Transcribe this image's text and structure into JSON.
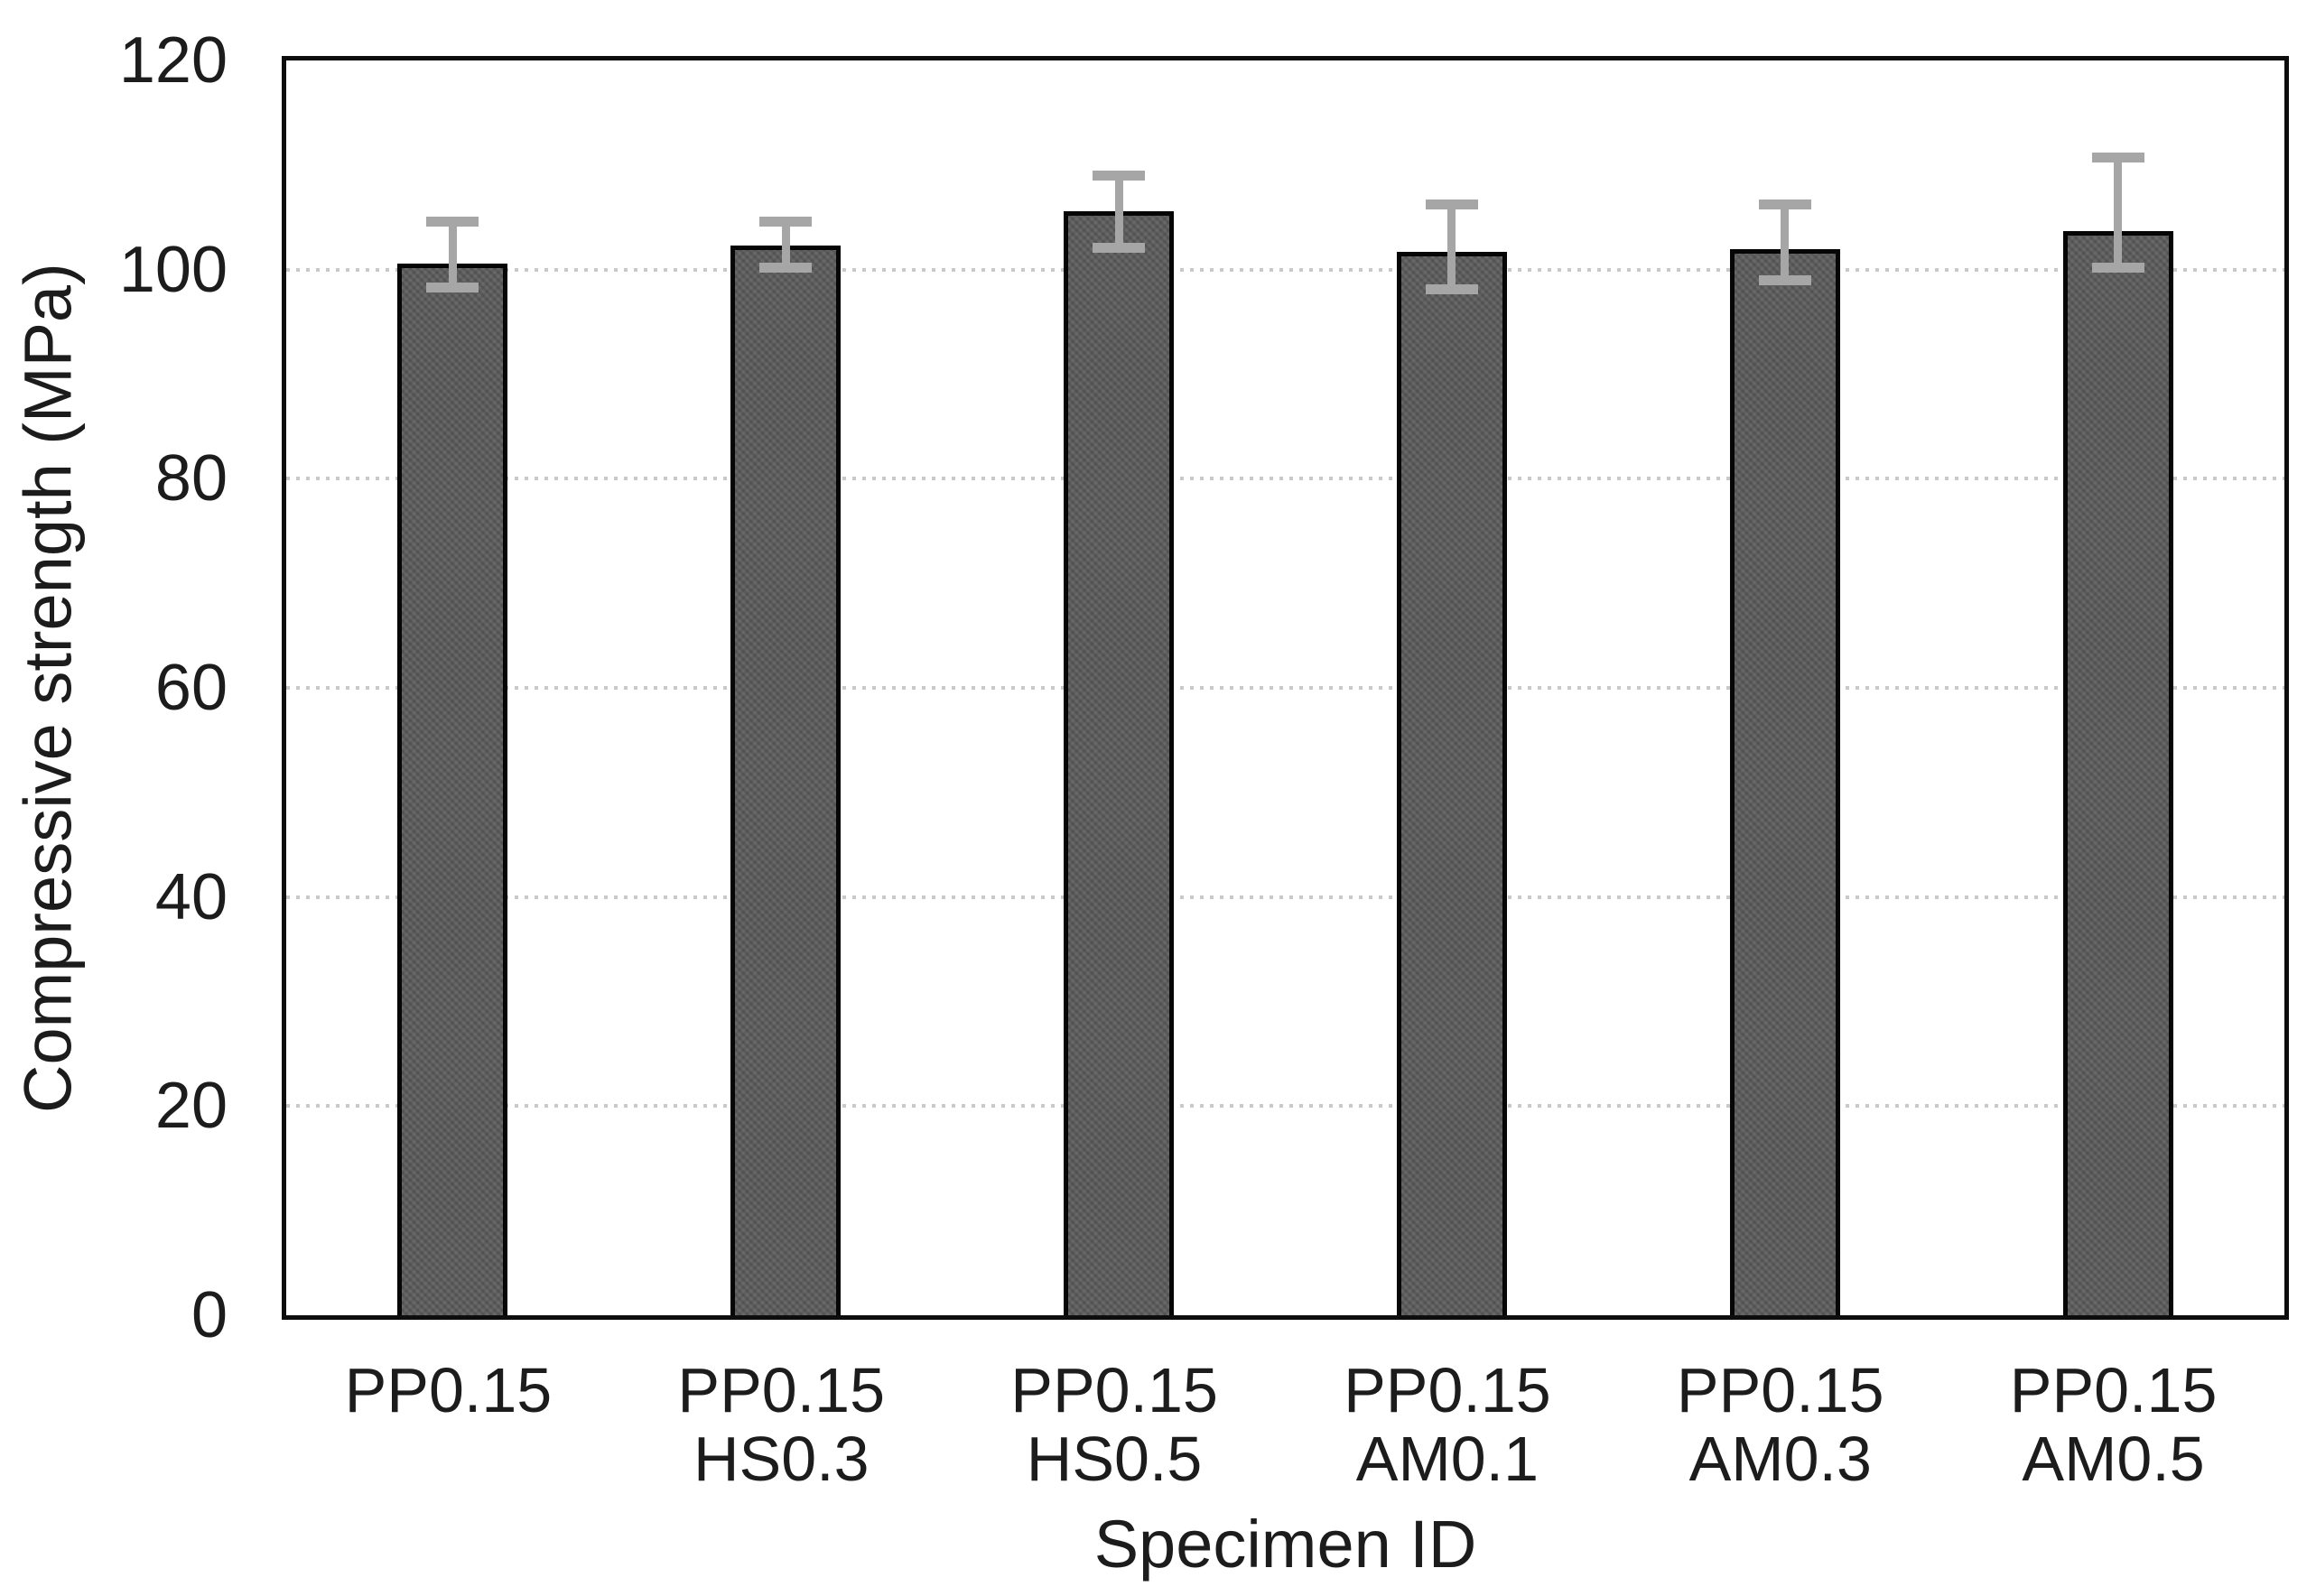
{
  "chart_data": {
    "type": "bar",
    "title": "",
    "xlabel": "Specimen ID",
    "ylabel": "Compressive strength (MPa)",
    "categories": [
      "PP0.15",
      "PP0.15\nHS0.3",
      "PP0.15\nHS0.5",
      "PP0.15\nAM0.1",
      "PP0.15\nAM0.3",
      "PP0.15\nAM0.5"
    ],
    "values": [
      100.6,
      102.3,
      105.6,
      101.7,
      102.0,
      103.7
    ],
    "error_plus": [
      4.0,
      2.3,
      3.4,
      4.5,
      4.2,
      7.0
    ],
    "error_minus": [
      2.3,
      2.1,
      3.5,
      3.6,
      3.0,
      3.5
    ],
    "ylim": [
      0,
      120
    ],
    "yticks": [
      0,
      20,
      40,
      60,
      80,
      100,
      120
    ],
    "grid": "horizontal-dotted",
    "legend": "none",
    "colors": {
      "bar_fill": "#595959",
      "bar_border": "#060606",
      "error_bar": "#a6a6a6",
      "gridline": "#c9c9c9",
      "frame": "#0d0d0d",
      "text": "#1c1c1c"
    }
  }
}
